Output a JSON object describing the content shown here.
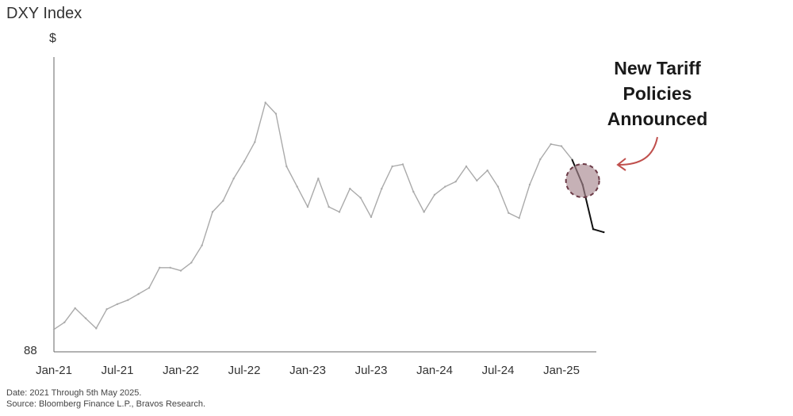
{
  "chart_data": {
    "type": "line",
    "title": "DXY Index",
    "ylabel": "$",
    "y_axis_min_label": "88",
    "ylim": [
      88,
      115
    ],
    "x_tick_labels": [
      "Jan-21",
      "Jul-21",
      "Jan-22",
      "Jul-22",
      "Jan-23",
      "Jul-23",
      "Jan-24",
      "Jul-24",
      "Jan-25"
    ],
    "x_tick_dates": [
      "2021-01",
      "2021-07",
      "2022-01",
      "2022-07",
      "2023-01",
      "2023-07",
      "2024-01",
      "2024-07",
      "2025-01"
    ],
    "grid": false,
    "series": [
      {
        "color": "#aaaaaa",
        "x": [
          "2021-01",
          "2021-02",
          "2021-03",
          "2021-04",
          "2021-05",
          "2021-06",
          "2021-07",
          "2021-08",
          "2021-09",
          "2021-10",
          "2021-11",
          "2021-12",
          "2022-01",
          "2022-02",
          "2022-03",
          "2022-04",
          "2022-05",
          "2022-06",
          "2022-07",
          "2022-08",
          "2022-09",
          "2022-10",
          "2022-11",
          "2022-12",
          "2023-01",
          "2023-02",
          "2023-03",
          "2023-04",
          "2023-05",
          "2023-06",
          "2023-07",
          "2023-08",
          "2023-09",
          "2023-10",
          "2023-11",
          "2023-12",
          "2024-01",
          "2024-02",
          "2024-03",
          "2024-04",
          "2024-05",
          "2024-06",
          "2024-07",
          "2024-08",
          "2024-09",
          "2024-10",
          "2024-11",
          "2024-12",
          "2025-01",
          "2025-02"
        ],
        "values": [
          89.9,
          90.6,
          92.0,
          91.0,
          90.0,
          91.9,
          92.4,
          92.8,
          93.4,
          94.0,
          96.0,
          96.0,
          95.7,
          96.5,
          98.2,
          101.5,
          102.6,
          104.8,
          106.5,
          108.4,
          112.3,
          111.2,
          106.0,
          104.0,
          102.0,
          104.8,
          102.0,
          101.5,
          103.8,
          102.9,
          101.0,
          103.8,
          106.0,
          106.2,
          103.5,
          101.5,
          103.2,
          104.0,
          104.5,
          106.0,
          104.6,
          105.6,
          104.0,
          101.4,
          100.9,
          104.2,
          106.7,
          108.2,
          108.0,
          106.7
        ]
      },
      {
        "color": "#111111",
        "x": [
          "2025-03",
          "2025-04",
          "2025-05"
        ],
        "values": [
          104.2,
          99.8,
          99.5
        ]
      }
    ],
    "annotation": {
      "text": "New Tariff Policies Announced",
      "lines": [
        "New Tariff",
        "Policies",
        "Announced"
      ],
      "highlight_date": "2025-03",
      "highlight_color": "#a8878f",
      "arrow_color": "#c0504d"
    }
  },
  "footer": {
    "date_note": "Date: 2021 Through 5th May 2025.",
    "source_note": "Source: Bloomberg Finance L.P., Bravos Research."
  }
}
